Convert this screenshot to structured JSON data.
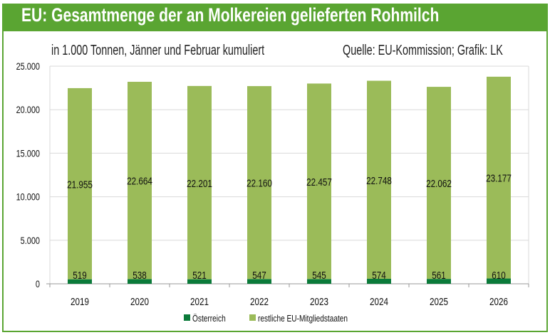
{
  "chart_data": {
    "type": "bar",
    "stacked": true,
    "title": "EU: Gesamtmenge der an Molkereien gelieferten Rohmilch",
    "subtitle": "in 1.000 Tonnen, Jänner und Februar kumuliert",
    "source": "Quelle: EU-Kommission; Grafik: LK",
    "categories": [
      "2019",
      "2020",
      "2021",
      "2022",
      "2023",
      "2024",
      "2025",
      "2026"
    ],
    "series": [
      {
        "name": "Österreich",
        "color": "#0b7a3a",
        "values": [
          519,
          538,
          521,
          547,
          545,
          574,
          561,
          610
        ],
        "labels": [
          "519",
          "538",
          "521",
          "547",
          "545",
          "574",
          "561",
          "610"
        ]
      },
      {
        "name": "restliche EU-Mitgliedstaaten",
        "color": "#9bbb59",
        "values": [
          21955,
          22664,
          22201,
          22160,
          22457,
          22748,
          22062,
          23177
        ],
        "labels": [
          "21.955",
          "22.664",
          "22.201",
          "22.160",
          "22.457",
          "22.748",
          "22.062",
          "23.177"
        ]
      }
    ],
    "ylim": [
      0,
      25000
    ],
    "yticks": [
      0,
      5000,
      10000,
      15000,
      20000,
      25000
    ],
    "ytick_labels": [
      "0",
      "5.000",
      "10.000",
      "15.000",
      "20.000",
      "25.000"
    ],
    "grid": true,
    "legend_placement": "bottom",
    "colors": {
      "frame": "#5aa532",
      "grid": "#d9d9d9"
    }
  }
}
